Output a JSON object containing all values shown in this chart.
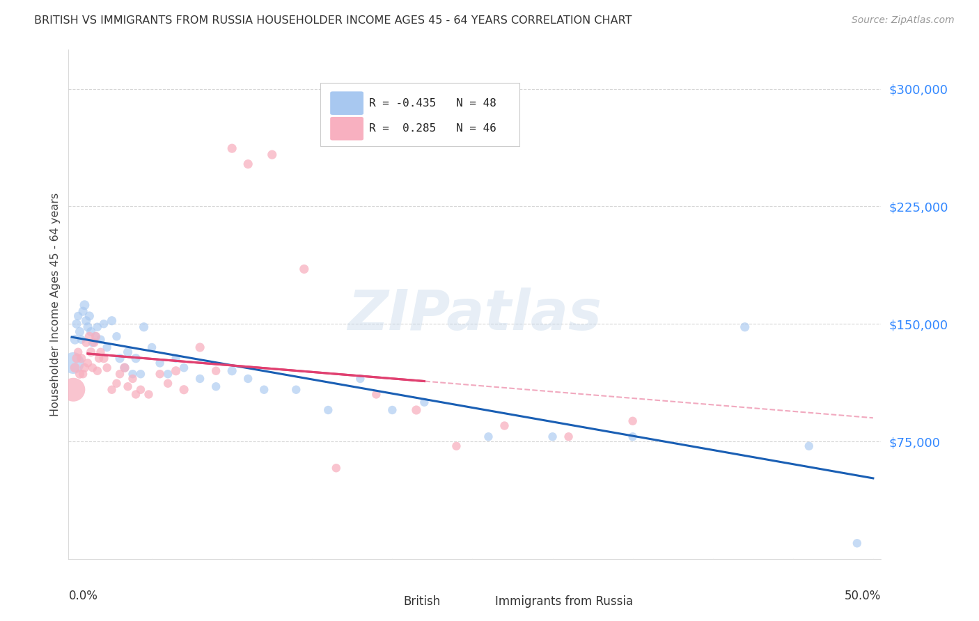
{
  "title": "BRITISH VS IMMIGRANTS FROM RUSSIA HOUSEHOLDER INCOME AGES 45 - 64 YEARS CORRELATION CHART",
  "source": "Source: ZipAtlas.com",
  "ylabel": "Householder Income Ages 45 - 64 years",
  "ytick_labels": [
    "$75,000",
    "$150,000",
    "$225,000",
    "$300,000"
  ],
  "ytick_values": [
    75000,
    150000,
    225000,
    300000
  ],
  "ymin": 0,
  "ymax": 325000,
  "xmin": -0.002,
  "xmax": 0.505,
  "legend_british": "British",
  "legend_russia": "Immigrants from Russia",
  "R_british": -0.435,
  "N_british": 48,
  "R_russia": 0.285,
  "N_russia": 46,
  "british_color": "#a8c8f0",
  "russia_color": "#f8b0c0",
  "british_line_color": "#1a5fb4",
  "russia_line_color": "#e04070",
  "russia_dash_color": "#f0a0b8",
  "background_color": "#ffffff",
  "grid_color": "#cccccc",
  "british_x": [
    0.001,
    0.002,
    0.003,
    0.004,
    0.005,
    0.006,
    0.007,
    0.008,
    0.009,
    0.01,
    0.011,
    0.012,
    0.013,
    0.015,
    0.016,
    0.018,
    0.02,
    0.022,
    0.025,
    0.028,
    0.03,
    0.033,
    0.035,
    0.038,
    0.04,
    0.043,
    0.045,
    0.05,
    0.055,
    0.06,
    0.065,
    0.07,
    0.08,
    0.09,
    0.1,
    0.11,
    0.12,
    0.14,
    0.16,
    0.18,
    0.2,
    0.22,
    0.26,
    0.3,
    0.35,
    0.42,
    0.46,
    0.49
  ],
  "british_y": [
    125000,
    140000,
    150000,
    155000,
    145000,
    140000,
    158000,
    162000,
    152000,
    148000,
    155000,
    145000,
    138000,
    142000,
    148000,
    140000,
    150000,
    135000,
    152000,
    142000,
    128000,
    122000,
    132000,
    118000,
    128000,
    118000,
    148000,
    135000,
    125000,
    118000,
    128000,
    122000,
    115000,
    110000,
    120000,
    115000,
    108000,
    108000,
    95000,
    115000,
    95000,
    100000,
    78000,
    78000,
    78000,
    148000,
    72000,
    10000
  ],
  "british_size": [
    500,
    100,
    90,
    80,
    90,
    80,
    90,
    100,
    90,
    90,
    90,
    90,
    80,
    80,
    80,
    80,
    80,
    80,
    90,
    80,
    90,
    90,
    90,
    80,
    90,
    80,
    90,
    80,
    80,
    80,
    80,
    80,
    80,
    80,
    90,
    80,
    80,
    80,
    80,
    80,
    80,
    80,
    80,
    80,
    80,
    90,
    80,
    80
  ],
  "russia_x": [
    0.001,
    0.002,
    0.003,
    0.004,
    0.005,
    0.006,
    0.007,
    0.008,
    0.009,
    0.01,
    0.011,
    0.012,
    0.013,
    0.014,
    0.015,
    0.016,
    0.017,
    0.018,
    0.02,
    0.022,
    0.025,
    0.028,
    0.03,
    0.033,
    0.035,
    0.038,
    0.04,
    0.043,
    0.048,
    0.055,
    0.06,
    0.065,
    0.07,
    0.08,
    0.09,
    0.1,
    0.11,
    0.125,
    0.145,
    0.165,
    0.19,
    0.215,
    0.24,
    0.27,
    0.31,
    0.35
  ],
  "russia_y": [
    108000,
    122000,
    128000,
    132000,
    118000,
    128000,
    118000,
    122000,
    138000,
    125000,
    142000,
    132000,
    122000,
    138000,
    142000,
    120000,
    128000,
    132000,
    128000,
    122000,
    108000,
    112000,
    118000,
    122000,
    110000,
    115000,
    105000,
    108000,
    105000,
    118000,
    112000,
    120000,
    108000,
    135000,
    120000,
    262000,
    252000,
    258000,
    185000,
    58000,
    105000,
    95000,
    72000,
    85000,
    78000,
    88000
  ],
  "russia_size": [
    600,
    100,
    90,
    80,
    90,
    90,
    80,
    90,
    80,
    80,
    90,
    90,
    80,
    80,
    90,
    80,
    80,
    80,
    90,
    80,
    80,
    80,
    80,
    90,
    80,
    80,
    80,
    80,
    80,
    80,
    80,
    90,
    90,
    90,
    80,
    90,
    90,
    90,
    90,
    80,
    80,
    90,
    80,
    80,
    80,
    80
  ]
}
